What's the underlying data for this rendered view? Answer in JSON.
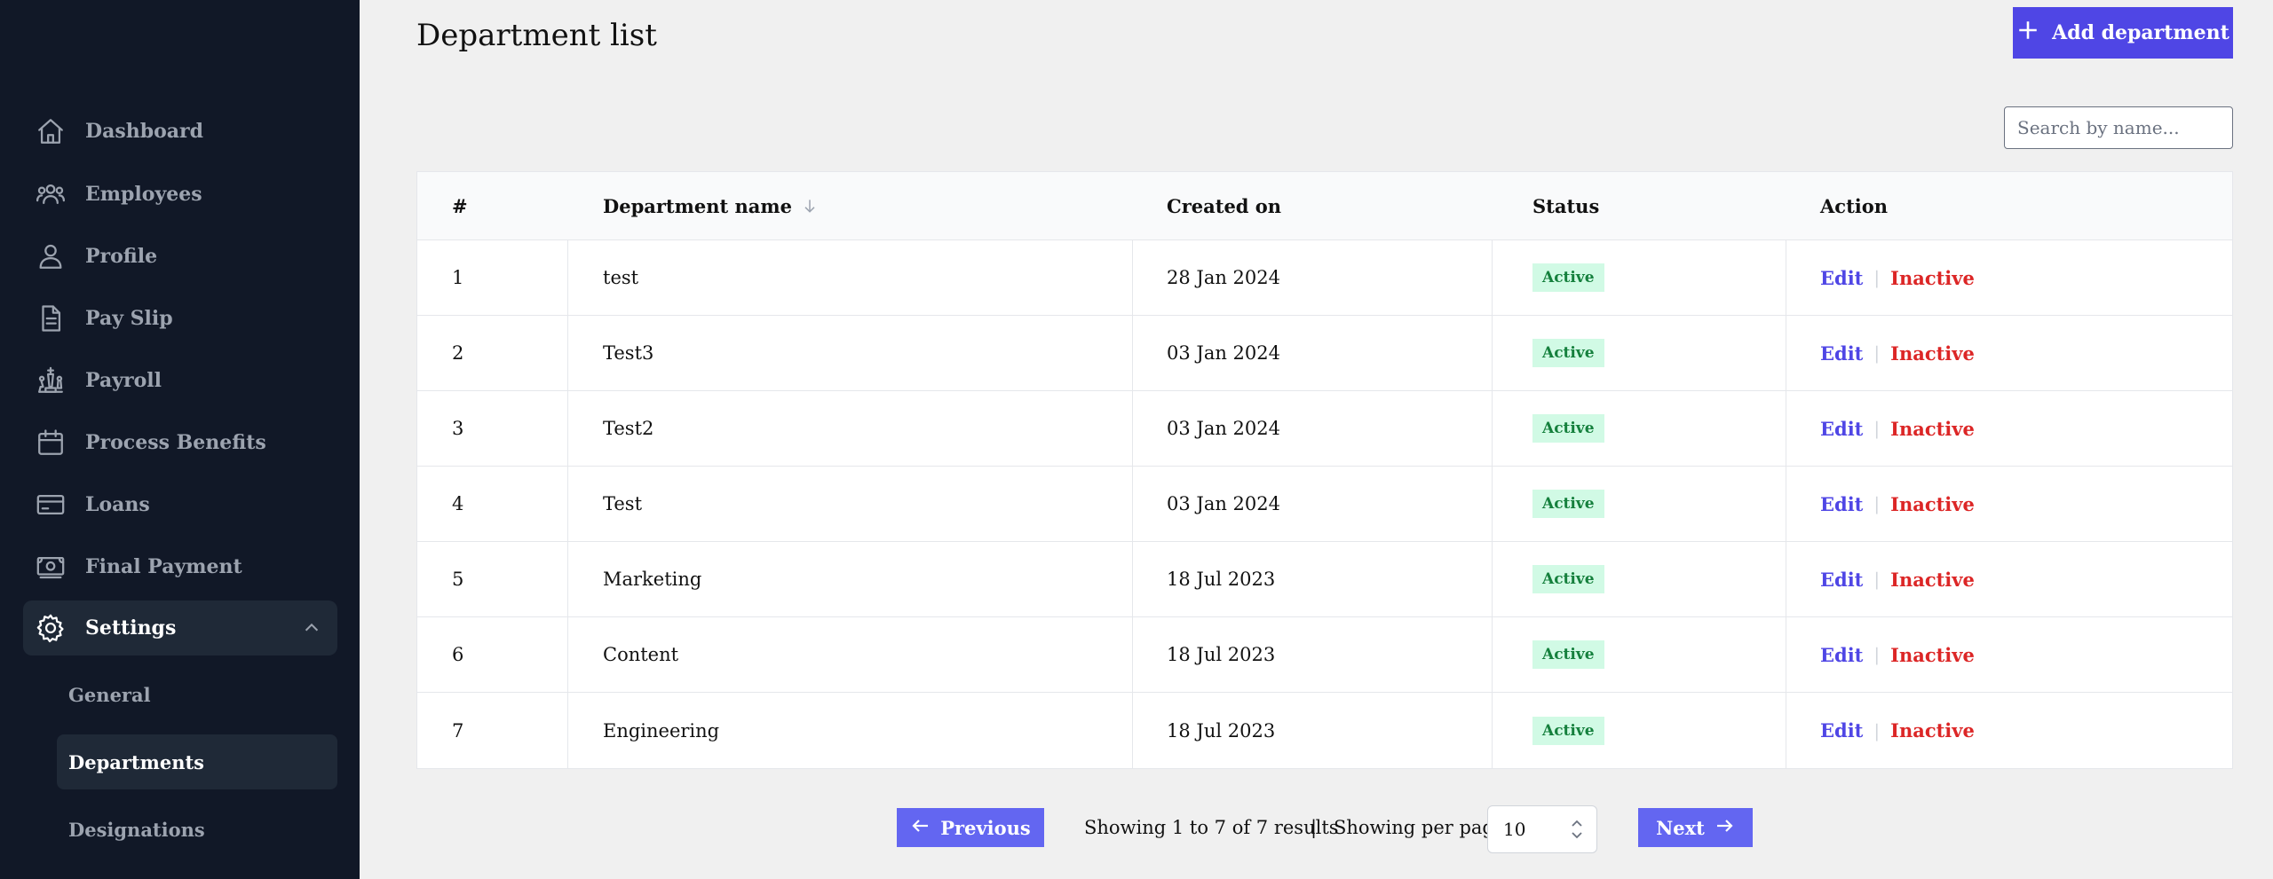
{
  "sidebar": {
    "items": [
      {
        "label": "Dashboard",
        "icon": "home-icon"
      },
      {
        "label": "Employees",
        "icon": "users-icon"
      },
      {
        "label": "Profile",
        "icon": "user-icon"
      },
      {
        "label": "Pay Slip",
        "icon": "document-icon"
      },
      {
        "label": "Payroll",
        "icon": "chess-icon"
      },
      {
        "label": "Process Benefits",
        "icon": "calendar-icon"
      },
      {
        "label": "Loans",
        "icon": "credit-card-icon"
      },
      {
        "label": "Final Payment",
        "icon": "banknote-icon"
      },
      {
        "label": "Settings",
        "icon": "gear-icon"
      }
    ],
    "settings_sub": [
      {
        "label": "General"
      },
      {
        "label": "Departments"
      },
      {
        "label": "Designations"
      }
    ]
  },
  "header": {
    "title": "Department list",
    "add_label": "Add department"
  },
  "search": {
    "placeholder": "Search by name..."
  },
  "table": {
    "headers": {
      "index": "#",
      "name": "Department name",
      "created": "Created on",
      "status": "Status",
      "action": "Action"
    },
    "edit_label": "Edit",
    "inactive_label": "Inactive",
    "rows": [
      {
        "index": "1",
        "name": "test",
        "created": "28 Jan 2024",
        "status": "Active"
      },
      {
        "index": "2",
        "name": "Test3",
        "created": "03 Jan 2024",
        "status": "Active"
      },
      {
        "index": "3",
        "name": "Test2",
        "created": "03 Jan 2024",
        "status": "Active"
      },
      {
        "index": "4",
        "name": "Test",
        "created": "03 Jan 2024",
        "status": "Active"
      },
      {
        "index": "5",
        "name": "Marketing",
        "created": "18 Jul 2023",
        "status": "Active"
      },
      {
        "index": "6",
        "name": "Content",
        "created": "18 Jul 2023",
        "status": "Active"
      },
      {
        "index": "7",
        "name": "Engineering",
        "created": "18 Jul 2023",
        "status": "Active"
      }
    ]
  },
  "pagination": {
    "previous_label": "Previous",
    "next_label": "Next",
    "summary": "Showing 1 to 7 of 7 results",
    "separator": "|",
    "per_page_label": "Showing per page",
    "per_page_value": "10"
  },
  "colors": {
    "sidebar_bg": "#111827",
    "accent": "#4f46e5",
    "status_active_bg": "#d1fae5",
    "status_active_text": "#15803d",
    "danger": "#dc2626"
  }
}
